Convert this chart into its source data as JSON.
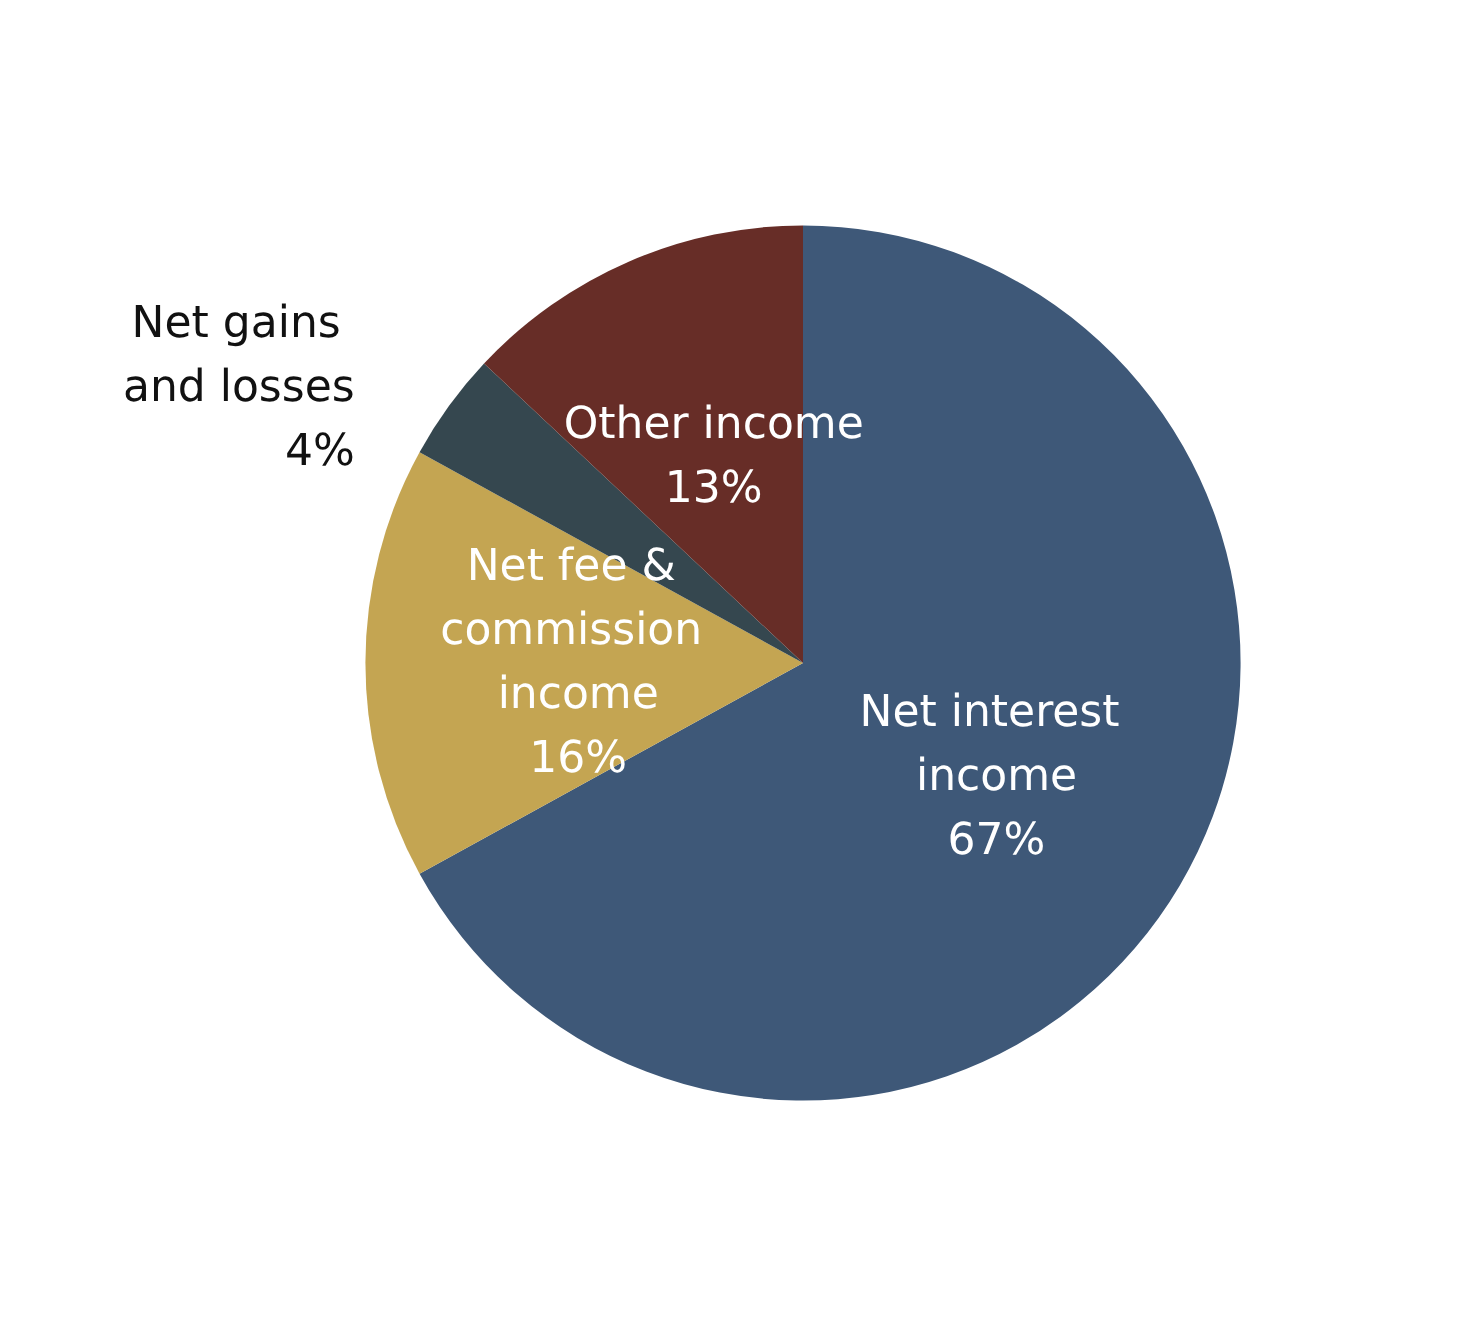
{
  "chart_data": {
    "type": "pie",
    "categories": [
      "Net interest income",
      "Net fee & commission income",
      "Net gains and losses",
      "Other income"
    ],
    "values": [
      67,
      16,
      4,
      13
    ],
    "value_labels": [
      "67%",
      "16%",
      "4%",
      "13%"
    ],
    "colors": [
      "#3e5878",
      "#c4a552",
      "#35474f",
      "#672d27"
    ],
    "legend": false
  }
}
